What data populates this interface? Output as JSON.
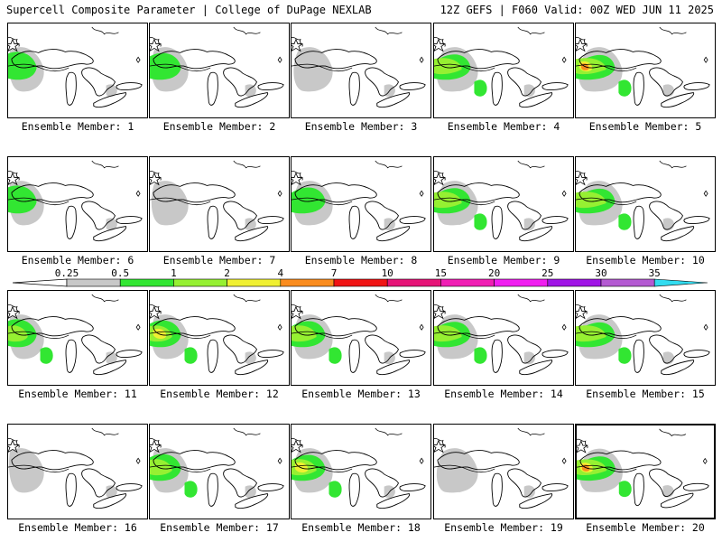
{
  "header": {
    "title_left": "Supercell Composite Parameter | College of DuPage NEXLAB",
    "title_right": "12Z GEFS | F060 Valid: 00Z WED JUN 11 2025"
  },
  "legend": {
    "labels": [
      "0.25",
      "0.5",
      "1",
      "2",
      "4",
      "7",
      "10",
      "15",
      "20",
      "25",
      "30",
      "35"
    ],
    "colors": [
      "#c8c8c8",
      "#32e632",
      "#96f032",
      "#f0f032",
      "#fa8c1e",
      "#f01414",
      "#e61478",
      "#f01eb4",
      "#f01ef0",
      "#a014e6",
      "#b45ad2",
      "#32dcf0"
    ]
  },
  "panels": [
    {
      "label": "Ensemble Member: 1",
      "intensity": 2
    },
    {
      "label": "Ensemble Member: 2",
      "intensity": 2
    },
    {
      "label": "Ensemble Member: 3",
      "intensity": 1
    },
    {
      "label": "Ensemble Member: 4",
      "intensity": 3
    },
    {
      "label": "Ensemble Member: 5",
      "intensity": 5
    },
    {
      "label": "Ensemble Member: 6",
      "intensity": 2
    },
    {
      "label": "Ensemble Member: 7",
      "intensity": 1
    },
    {
      "label": "Ensemble Member: 8",
      "intensity": 2
    },
    {
      "label": "Ensemble Member: 9",
      "intensity": 3
    },
    {
      "label": "Ensemble Member: 10",
      "intensity": 3
    },
    {
      "label": "Ensemble Member: 11",
      "intensity": 3
    },
    {
      "label": "Ensemble Member: 12",
      "intensity": 4
    },
    {
      "label": "Ensemble Member: 13",
      "intensity": 3
    },
    {
      "label": "Ensemble Member: 14",
      "intensity": 3
    },
    {
      "label": "Ensemble Member: 15",
      "intensity": 3
    },
    {
      "label": "Ensemble Member: 16",
      "intensity": 1
    },
    {
      "label": "Ensemble Member: 17",
      "intensity": 3
    },
    {
      "label": "Ensemble Member: 18",
      "intensity": 4
    },
    {
      "label": "Ensemble Member: 19",
      "intensity": 1
    },
    {
      "label": "Ensemble Member: 20",
      "intensity": 5,
      "selected": true
    }
  ]
}
